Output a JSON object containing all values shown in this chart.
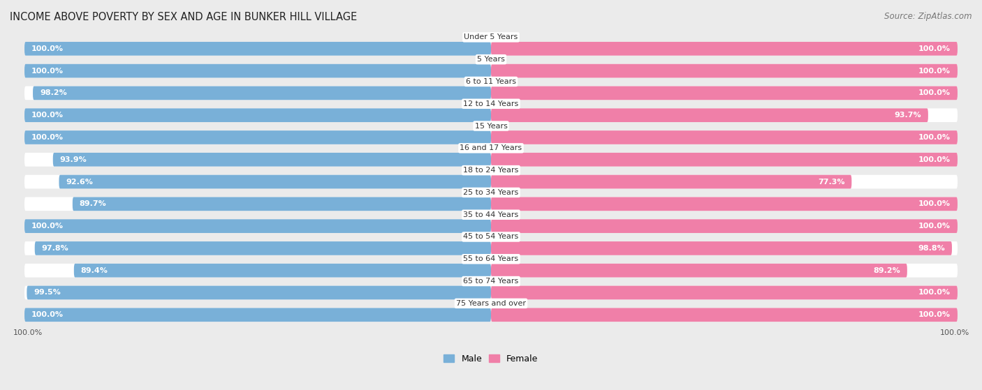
{
  "title": "INCOME ABOVE POVERTY BY SEX AND AGE IN BUNKER HILL VILLAGE",
  "source": "Source: ZipAtlas.com",
  "categories": [
    "Under 5 Years",
    "5 Years",
    "6 to 11 Years",
    "12 to 14 Years",
    "15 Years",
    "16 and 17 Years",
    "18 to 24 Years",
    "25 to 34 Years",
    "35 to 44 Years",
    "45 to 54 Years",
    "55 to 64 Years",
    "65 to 74 Years",
    "75 Years and over"
  ],
  "male_values": [
    100.0,
    100.0,
    98.2,
    100.0,
    100.0,
    93.9,
    92.6,
    89.7,
    100.0,
    97.8,
    89.4,
    99.5,
    100.0
  ],
  "female_values": [
    100.0,
    100.0,
    100.0,
    93.7,
    100.0,
    100.0,
    77.3,
    100.0,
    100.0,
    98.8,
    89.2,
    100.0,
    100.0
  ],
  "male_color": "#79b0d8",
  "female_color": "#f07fa8",
  "male_label": "Male",
  "female_label": "Female",
  "bg_color": "#ebebeb",
  "bar_bg_color": "#ffffff",
  "title_fontsize": 10.5,
  "value_fontsize": 8.0,
  "category_fontsize": 8.0,
  "source_fontsize": 8.5,
  "legend_fontsize": 9.0,
  "max_val": 100.0,
  "xlim": 100.0
}
